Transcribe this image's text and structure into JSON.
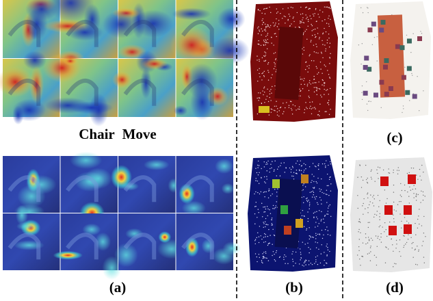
{
  "figure": {
    "heading": "Chair Move",
    "panels": [
      "(a)",
      "(b)",
      "(c)",
      "(d)"
    ]
  }
}
